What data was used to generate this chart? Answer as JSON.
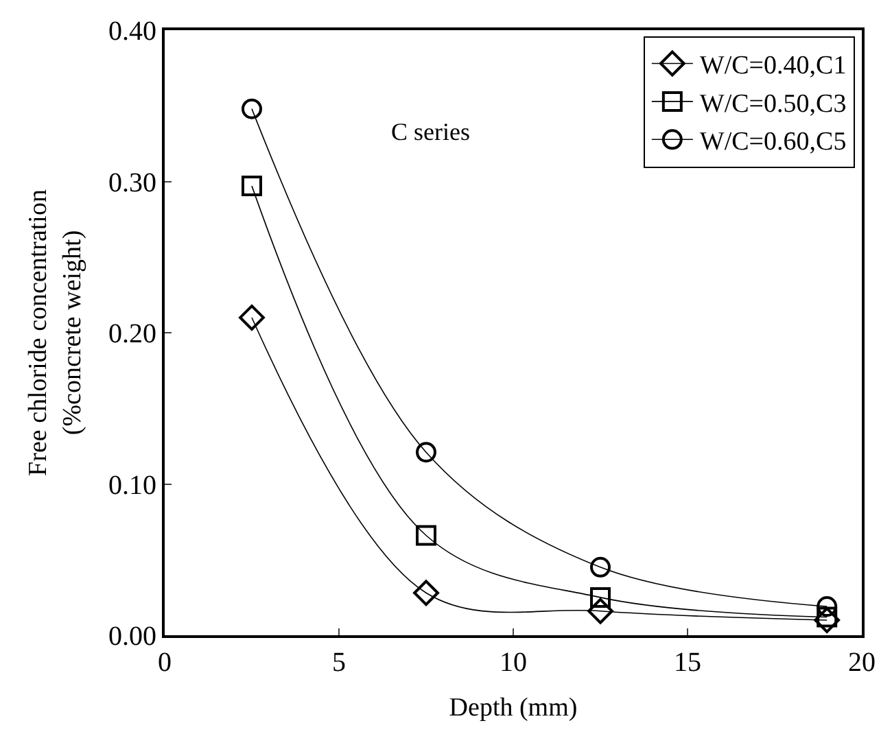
{
  "chart_data": {
    "type": "line",
    "xlabel": "Depth (mm)",
    "ylabel": "Free chloride concentration\n(%concrete weight)",
    "x": [
      2.5,
      7.5,
      12.5,
      19
    ],
    "series": [
      {
        "name": "W/C=0.40,C1",
        "color": "#000000",
        "marker": "diamond",
        "values": [
          0.21,
          0.028,
          0.016,
          0.01
        ]
      },
      {
        "name": "W/C=0.50,C3",
        "color": "#000000",
        "marker": "square",
        "values": [
          0.297,
          0.066,
          0.025,
          0.012
        ]
      },
      {
        "name": "W/C=0.60,C5",
        "color": "#000000",
        "marker": "circle",
        "values": [
          0.348,
          0.121,
          0.045,
          0.019
        ]
      }
    ],
    "xlim": [
      0,
      20
    ],
    "xticks": [
      0,
      5,
      10,
      15,
      20
    ],
    "ylim": [
      0,
      0.4
    ],
    "yticks": [
      {
        "value": 0,
        "label": "0.00"
      },
      {
        "value": 0.1,
        "label": "0.10"
      },
      {
        "value": 0.2,
        "label": "0.20"
      },
      {
        "value": 0.3,
        "label": "0.30"
      },
      {
        "value": 0.4,
        "label": "0.40"
      }
    ],
    "annotations": [
      "C series"
    ],
    "legend": "top right",
    "line_style": "solid"
  }
}
